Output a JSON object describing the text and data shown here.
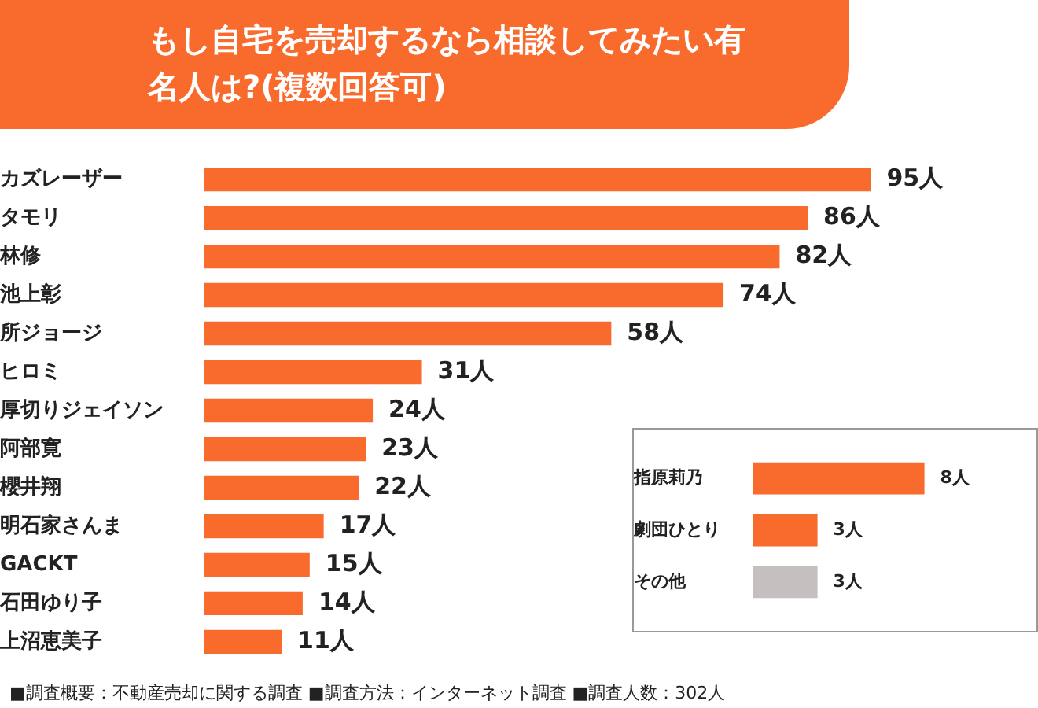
{
  "chart_data": [
    {
      "type": "bar",
      "orientation": "horizontal",
      "title": "もし自宅を売却するなら相談してみたい有名人は?(複数回答可)",
      "categories": [
        "カズレーザー",
        "タモリ",
        "林修",
        "池上彰",
        "所ジョージ",
        "ヒロミ",
        "厚切りジェイソン",
        "阿部寛",
        "櫻井翔",
        "明石家さんま",
        "GACKT",
        "石田ゆり子",
        "上沼恵美子"
      ],
      "values": [
        95,
        86,
        82,
        74,
        58,
        31,
        24,
        23,
        22,
        17,
        15,
        14,
        11
      ],
      "value_labels": [
        "95人",
        "86人",
        "82人",
        "74人",
        "58人",
        "31人",
        "24人",
        "23人",
        "22人",
        "17人",
        "15人",
        "14人",
        "11人"
      ],
      "color": "#f96a2d",
      "grid": false,
      "legend": false,
      "tick_labels": "y",
      "annotations": [
        "■調査概要：不動産売却に関する調査 ■調査方法：インターネット調査 ■調査人数：302人"
      ]
    },
    {
      "type": "bar",
      "orientation": "horizontal",
      "categories": [
        "指原莉乃",
        "劇団ひとり",
        "その他"
      ],
      "values": [
        8,
        3,
        3
      ],
      "value_labels": [
        "8人",
        "3人",
        "3人"
      ],
      "colors": [
        "#f96a2d",
        "#f96a2d",
        "#c4c0c0"
      ],
      "grid": false,
      "legend": false,
      "tick_labels": "y"
    }
  ]
}
